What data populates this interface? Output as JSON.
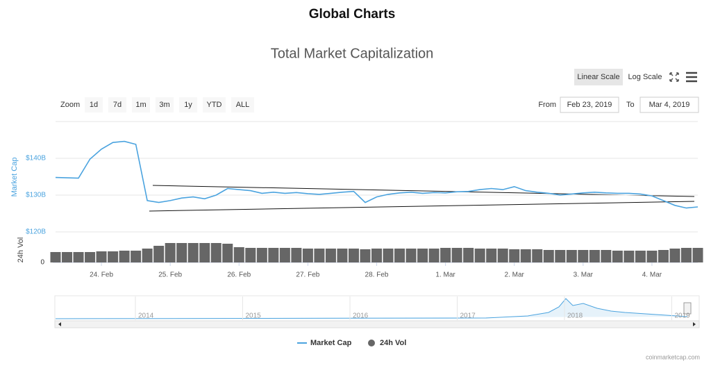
{
  "page_title": "Global Charts",
  "chart_data": {
    "type": "line",
    "title": "Total Market Capitalization",
    "controls": {
      "scale_buttons": [
        "Linear Scale",
        "Log Scale"
      ],
      "zoom_label": "Zoom",
      "zoom_buttons": [
        "1d",
        "7d",
        "1m",
        "3m",
        "1y",
        "YTD",
        "ALL"
      ],
      "from_label": "From",
      "from": "Feb 23, 2019",
      "to_label": "To",
      "to": "Mar 4, 2019"
    },
    "y_label": "Market Cap",
    "y2_label": "24h Vol",
    "categories": [
      null,
      null,
      null,
      null,
      "24. Feb",
      null,
      null,
      null,
      null,
      null,
      "25. Feb",
      null,
      null,
      null,
      null,
      null,
      "26. Feb",
      null,
      null,
      null,
      null,
      null,
      "27. Feb",
      null,
      null,
      null,
      null,
      null,
      "28. Feb",
      null,
      null,
      null,
      null,
      null,
      "1. Mar",
      null,
      null,
      null,
      null,
      null,
      "2. Mar",
      null,
      null,
      null,
      null,
      null,
      "3. Mar",
      null,
      null,
      null,
      null,
      null,
      "4. Mar",
      null,
      null,
      null,
      null
    ],
    "series": [
      {
        "name": "Market Cap",
        "color": "#4aa3df",
        "type": "line",
        "values": [
          134.8,
          134.7,
          134.6,
          139.8,
          142.5,
          144.3,
          144.6,
          143.8,
          128.5,
          128.0,
          128.5,
          129.2,
          129.5,
          129.0,
          130.0,
          131.8,
          131.5,
          131.2,
          130.5,
          130.8,
          130.5,
          130.7,
          130.4,
          130.2,
          130.5,
          130.8,
          131.0,
          128.0,
          129.5,
          130.2,
          130.6,
          130.8,
          130.5,
          130.7,
          130.6,
          130.9,
          131.0,
          131.5,
          131.8,
          131.5,
          132.3,
          131.2,
          130.8,
          130.5,
          130.0,
          130.3,
          130.6,
          130.8,
          130.6,
          130.5,
          130.5,
          130.3,
          129.8,
          128.5,
          127.2,
          126.5,
          126.8
        ]
      },
      {
        "name": "24h Vol",
        "color": "#666666",
        "type": "bar",
        "axis": "y2",
        "values": [
          15,
          15,
          15,
          15,
          16,
          16,
          17,
          17,
          20,
          24,
          28,
          28,
          28,
          28,
          28,
          27,
          22,
          21,
          21,
          21,
          21,
          21,
          20,
          20,
          20,
          20,
          20,
          19,
          20,
          20,
          20,
          20,
          20,
          20,
          21,
          21,
          21,
          20,
          20,
          20,
          19,
          19,
          19,
          18,
          18,
          18,
          18,
          18,
          18,
          17,
          17,
          17,
          17,
          18,
          20,
          21,
          21
        ]
      }
    ],
    "ylim": [
      120,
      150
    ],
    "yticks": [
      {
        "value": 120,
        "label": "$120B"
      },
      {
        "value": 130,
        "label": "$130B"
      },
      {
        "value": 140,
        "label": "$140B"
      }
    ],
    "y2lim": [
      0,
      40
    ],
    "y2ticks": [
      0
    ],
    "grid": true,
    "navigator": {
      "labels": [
        "2014",
        "2015",
        "2016",
        "2017",
        "2018",
        "2019"
      ]
    },
    "credits": "coinmarketcap.com"
  }
}
